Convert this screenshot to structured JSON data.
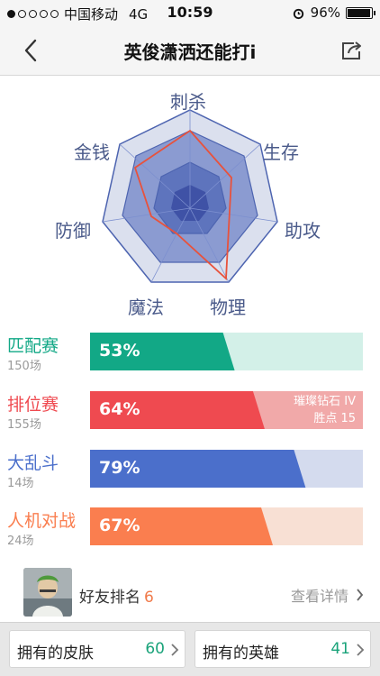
{
  "status_bar": {
    "carrier": "中国移动",
    "network": "4G",
    "time": "10:59",
    "battery": "96%",
    "battery_level": 0.96
  },
  "nav": {
    "title": "英俊潇洒还能打i"
  },
  "radar": {
    "labels": [
      "刺杀",
      "生存",
      "助攻",
      "物理",
      "魔法",
      "防御",
      "金钱"
    ]
  },
  "modes": [
    {
      "name": "匹配赛",
      "count": "150场",
      "pct_text": "53%",
      "pct": 0.53,
      "color": "#12a886",
      "light": "#d3f0e8"
    },
    {
      "name": "排位赛",
      "count": "155场",
      "pct_text": "64%",
      "pct": 0.64,
      "color": "#ef4a50",
      "light": "#f1a9a9",
      "extra": [
        "璀璨钻石 IV",
        "胜点 15"
      ]
    },
    {
      "name": "大乱斗",
      "count": "14场",
      "pct_text": "79%",
      "pct": 0.79,
      "color": "#4b6fcb",
      "light": "#d4dbee"
    },
    {
      "name": "人机对战",
      "count": "24场",
      "pct_text": "67%",
      "pct": 0.67,
      "color": "#fa7e4f",
      "light": "#f8e0d4"
    }
  ],
  "friend": {
    "label": "好友排名",
    "rank": "6",
    "more": "查看详情"
  },
  "bottom": {
    "skins": {
      "label": "拥有的皮肤",
      "value": "60"
    },
    "heroes": {
      "label": "拥有的英雄",
      "value": "41"
    }
  }
}
